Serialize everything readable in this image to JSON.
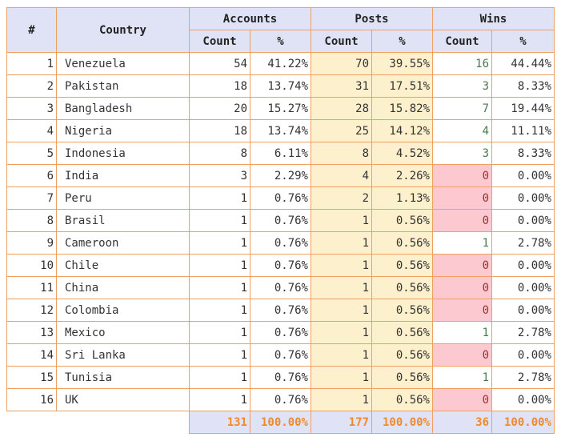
{
  "header": {
    "rank": "#",
    "country": "Country",
    "groups": {
      "accounts": "Accounts",
      "posts": "Posts",
      "wins": "Wins"
    },
    "count": "Count",
    "pct": "%"
  },
  "rows": [
    {
      "rank": "1",
      "country": "Venezuela",
      "acc_count": "54",
      "acc_pct": "41.22%",
      "posts_count": "70",
      "posts_pct": "39.55%",
      "wins_count": "16",
      "wins_pct": "44.44%"
    },
    {
      "rank": "2",
      "country": "Pakistan",
      "acc_count": "18",
      "acc_pct": "13.74%",
      "posts_count": "31",
      "posts_pct": "17.51%",
      "wins_count": "3",
      "wins_pct": "8.33%"
    },
    {
      "rank": "3",
      "country": "Bangladesh",
      "acc_count": "20",
      "acc_pct": "15.27%",
      "posts_count": "28",
      "posts_pct": "15.82%",
      "wins_count": "7",
      "wins_pct": "19.44%"
    },
    {
      "rank": "4",
      "country": "Nigeria",
      "acc_count": "18",
      "acc_pct": "13.74%",
      "posts_count": "25",
      "posts_pct": "14.12%",
      "wins_count": "4",
      "wins_pct": "11.11%"
    },
    {
      "rank": "5",
      "country": "Indonesia",
      "acc_count": "8",
      "acc_pct": "6.11%",
      "posts_count": "8",
      "posts_pct": "4.52%",
      "wins_count": "3",
      "wins_pct": "8.33%"
    },
    {
      "rank": "6",
      "country": "India",
      "acc_count": "3",
      "acc_pct": "2.29%",
      "posts_count": "4",
      "posts_pct": "2.26%",
      "wins_count": "0",
      "wins_pct": "0.00%"
    },
    {
      "rank": "7",
      "country": "Peru",
      "acc_count": "1",
      "acc_pct": "0.76%",
      "posts_count": "2",
      "posts_pct": "1.13%",
      "wins_count": "0",
      "wins_pct": "0.00%"
    },
    {
      "rank": "8",
      "country": "Brasil",
      "acc_count": "1",
      "acc_pct": "0.76%",
      "posts_count": "1",
      "posts_pct": "0.56%",
      "wins_count": "0",
      "wins_pct": "0.00%"
    },
    {
      "rank": "9",
      "country": "Cameroon",
      "acc_count": "1",
      "acc_pct": "0.76%",
      "posts_count": "1",
      "posts_pct": "0.56%",
      "wins_count": "1",
      "wins_pct": "2.78%"
    },
    {
      "rank": "10",
      "country": "Chile",
      "acc_count": "1",
      "acc_pct": "0.76%",
      "posts_count": "1",
      "posts_pct": "0.56%",
      "wins_count": "0",
      "wins_pct": "0.00%"
    },
    {
      "rank": "11",
      "country": "China",
      "acc_count": "1",
      "acc_pct": "0.76%",
      "posts_count": "1",
      "posts_pct": "0.56%",
      "wins_count": "0",
      "wins_pct": "0.00%"
    },
    {
      "rank": "12",
      "country": "Colombia",
      "acc_count": "1",
      "acc_pct": "0.76%",
      "posts_count": "1",
      "posts_pct": "0.56%",
      "wins_count": "0",
      "wins_pct": "0.00%"
    },
    {
      "rank": "13",
      "country": "Mexico",
      "acc_count": "1",
      "acc_pct": "0.76%",
      "posts_count": "1",
      "posts_pct": "0.56%",
      "wins_count": "1",
      "wins_pct": "2.78%"
    },
    {
      "rank": "14",
      "country": "Sri Lanka",
      "acc_count": "1",
      "acc_pct": "0.76%",
      "posts_count": "1",
      "posts_pct": "0.56%",
      "wins_count": "0",
      "wins_pct": "0.00%"
    },
    {
      "rank": "15",
      "country": "Tunisia",
      "acc_count": "1",
      "acc_pct": "0.76%",
      "posts_count": "1",
      "posts_pct": "0.56%",
      "wins_count": "1",
      "wins_pct": "2.78%"
    },
    {
      "rank": "16",
      "country": "UK",
      "acc_count": "1",
      "acc_pct": "0.76%",
      "posts_count": "1",
      "posts_pct": "0.56%",
      "wins_count": "0",
      "wins_pct": "0.00%"
    }
  ],
  "totals": {
    "acc_count": "131",
    "acc_pct": "100.00%",
    "posts_count": "177",
    "posts_pct": "100.00%",
    "wins_count": "36",
    "wins_pct": "100.00%"
  },
  "colors": {
    "border": "#f0a060",
    "header_bg": "#dfe3f5",
    "posts_bg": "#fdf0cd",
    "zero_wins_bg": "#fdc9d0",
    "totals_text": "#f08a30"
  }
}
